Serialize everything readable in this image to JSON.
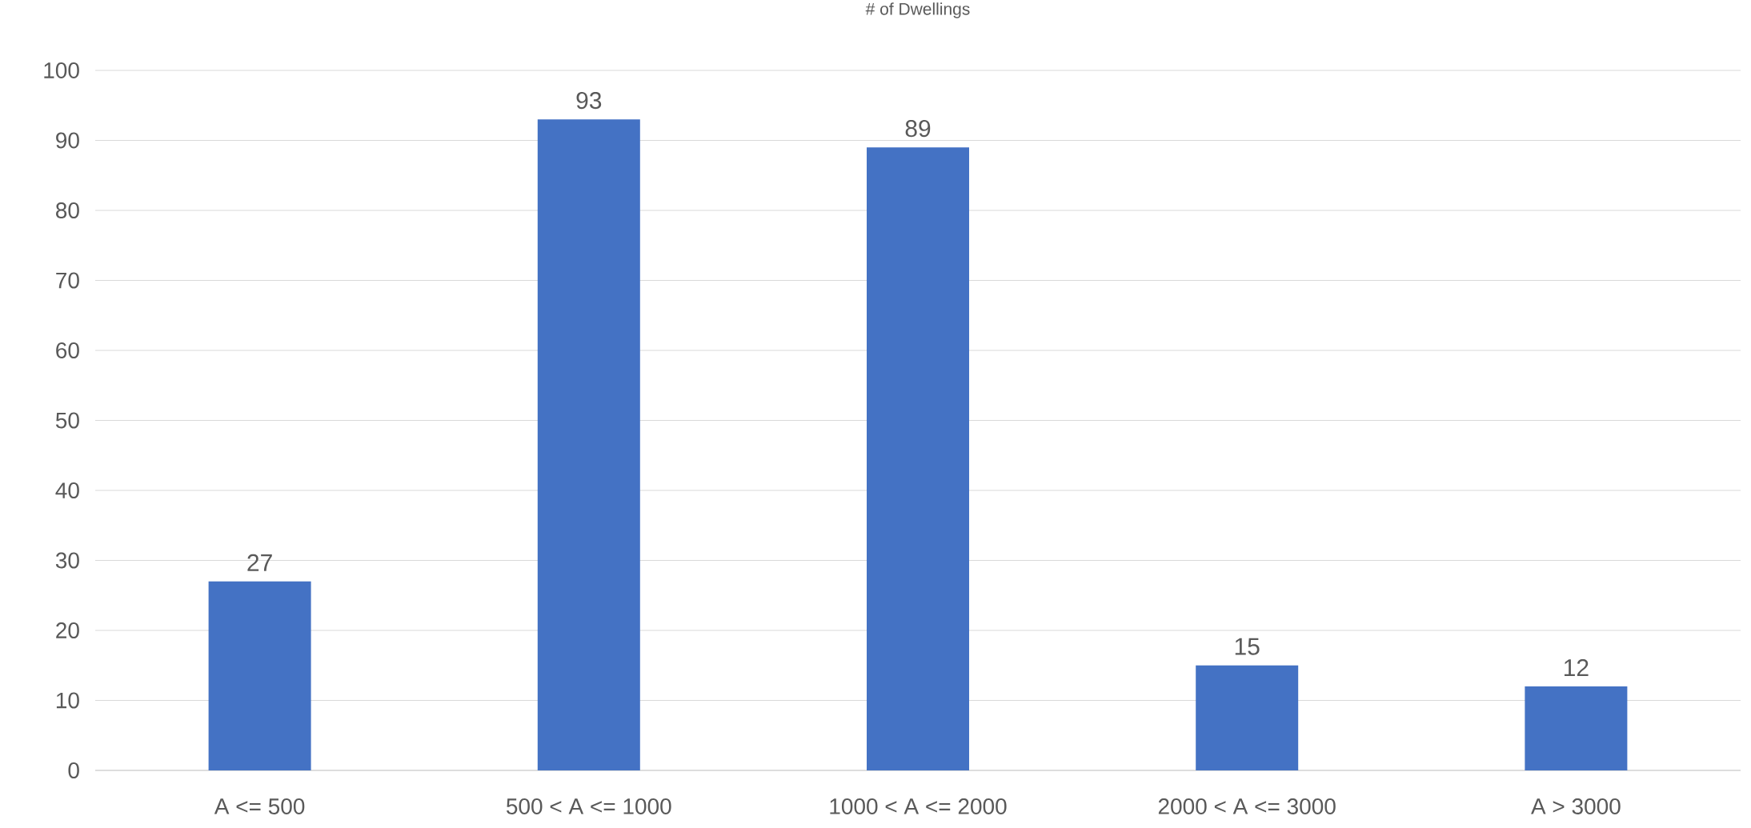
{
  "chart_data": {
    "type": "bar",
    "title": "# of Dwellings",
    "categories": [
      "A <= 500",
      "500 < A <= 1000",
      "1000 < A <= 2000",
      "2000 < A <= 3000",
      "A > 3000"
    ],
    "values": [
      27,
      93,
      89,
      15,
      12
    ],
    "color": "#4472c4",
    "ylim": [
      0,
      100
    ],
    "yticks": [
      0,
      10,
      20,
      30,
      40,
      50,
      60,
      70,
      80,
      90,
      100
    ],
    "grid": "y",
    "data_labels": true
  }
}
